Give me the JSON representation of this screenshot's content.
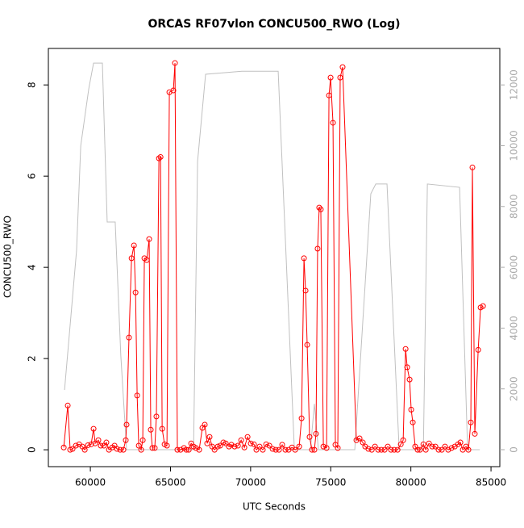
{
  "chart_data": {
    "type": "line",
    "title": "ORCAS RF07vlon CONCU500_RWO (Log)",
    "xlabel": "UTC Seconds",
    "ylabel": "CONCU500_RWO",
    "xlim": [
      57380,
      85550
    ],
    "xticks": [
      60000,
      65000,
      70000,
      75000,
      80000,
      85000
    ],
    "ylim": [
      -0.37,
      8.8
    ],
    "yticks": [
      0,
      2,
      4,
      6,
      8
    ],
    "y2lim": [
      -558,
      13200
    ],
    "y2ticks": [
      0,
      2000,
      4000,
      6000,
      8000,
      10000,
      12000
    ],
    "series": [
      {
        "color": "#ff0000",
        "markers": true,
        "x": [
          58340,
          58590,
          58740,
          58890,
          59095,
          59300,
          59500,
          59650,
          59850,
          60050,
          60200,
          60300,
          60500,
          60650,
          60850,
          61000,
          61160,
          61360,
          61510,
          61660,
          61860,
          62060,
          62210,
          62260,
          62410,
          62570,
          62720,
          62820,
          62920,
          63020,
          63170,
          63270,
          63370,
          63520,
          63670,
          63770,
          63870,
          64020,
          64120,
          64280,
          64380,
          64480,
          64630,
          64780,
          64930,
          65180,
          65280,
          65430,
          65630,
          65840,
          65990,
          66140,
          66290,
          66440,
          66590,
          66790,
          66990,
          67140,
          67290,
          67440,
          67600,
          67750,
          67950,
          68100,
          68300,
          68450,
          68650,
          68800,
          69000,
          69210,
          69410,
          69610,
          69810,
          70010,
          70210,
          70360,
          70560,
          70760,
          70970,
          71170,
          71370,
          71570,
          71770,
          71970,
          72170,
          72370,
          72580,
          72780,
          73030,
          73180,
          73330,
          73430,
          73530,
          73680,
          73830,
          73980,
          74080,
          74180,
          74280,
          74380,
          74540,
          74740,
          74890,
          74990,
          75140,
          75290,
          75440,
          75590,
          75740,
          76600,
          76800,
          77000,
          77150,
          77350,
          77560,
          77760,
          77960,
          78160,
          78360,
          78560,
          78760,
          78960,
          79170,
          79370,
          79520,
          79670,
          79770,
          79920,
          80020,
          80120,
          80270,
          80420,
          80570,
          80780,
          80930,
          81130,
          81330,
          81530,
          81730,
          81930,
          82130,
          82330,
          82540,
          82740,
          82940,
          83090,
          83240,
          83440,
          83590,
          83740,
          83840,
          83990,
          84200,
          84350,
          84500
        ],
        "values": [
          0.05,
          0.97,
          0,
          0.02,
          0.09,
          0.12,
          0.07,
          0,
          0.1,
          0.12,
          0.46,
          0.14,
          0.21,
          0.09,
          0.09,
          0.16,
          0,
          0.05,
          0.09,
          0.02,
          0,
          0,
          0.21,
          0.55,
          2.46,
          4.2,
          4.48,
          3.45,
          1.19,
          0.09,
          0,
          0.21,
          4.2,
          4.16,
          4.62,
          0.44,
          0.04,
          0.04,
          0.73,
          6.39,
          6.42,
          0.46,
          0.12,
          0.09,
          7.84,
          7.88,
          8.48,
          0,
          0,
          0.04,
          0,
          0,
          0.14,
          0.07,
          0.04,
          0,
          0.48,
          0.55,
          0.14,
          0.28,
          0.07,
          0,
          0.07,
          0.09,
          0.16,
          0.14,
          0.07,
          0.11,
          0.07,
          0.09,
          0.21,
          0.05,
          0.28,
          0.14,
          0.12,
          0,
          0.07,
          0,
          0.12,
          0.09,
          0.02,
          0,
          0,
          0.11,
          0,
          0,
          0.05,
          0,
          0.07,
          0.69,
          4.2,
          3.49,
          2.3,
          0.28,
          0,
          0,
          0.35,
          4.41,
          5.31,
          5.27,
          0.07,
          0.04,
          7.77,
          8.16,
          7.17,
          0.11,
          0.04,
          8.16,
          8.39,
          0.21,
          0.25,
          0.16,
          0.07,
          0.02,
          0,
          0.07,
          0,
          0,
          0,
          0.07,
          0,
          0,
          0,
          0.12,
          0.21,
          2.21,
          1.81,
          1.54,
          0.88,
          0.6,
          0.07,
          0,
          0,
          0.12,
          0,
          0.14,
          0.07,
          0.07,
          0,
          0,
          0.07,
          0,
          0.04,
          0.07,
          0.12,
          0.16,
          0,
          0.07,
          0,
          0.6,
          6.19,
          0.35,
          2.19,
          3.12,
          3.15
        ]
      },
      {
        "color": "#c0c0c0",
        "markers": false,
        "axis": "y2",
        "x": [
          58390,
          59140,
          59400,
          59900,
          60200,
          60750,
          61050,
          61550,
          61900,
          62260,
          66440,
          66690,
          67190,
          69450,
          71720,
          72730,
          73730,
          73980,
          74230,
          76500,
          77500,
          77810,
          78510,
          79270,
          80780,
          81030,
          83040,
          83540,
          84300
        ],
        "values": [
          1965,
          6560,
          10000,
          11870,
          12720,
          12720,
          7490,
          7490,
          3100,
          0,
          0,
          9480,
          12350,
          12450,
          12450,
          0,
          0,
          1510,
          0,
          0,
          8420,
          8740,
          8740,
          0,
          0,
          8740,
          8630,
          0,
          0
        ]
      }
    ]
  }
}
